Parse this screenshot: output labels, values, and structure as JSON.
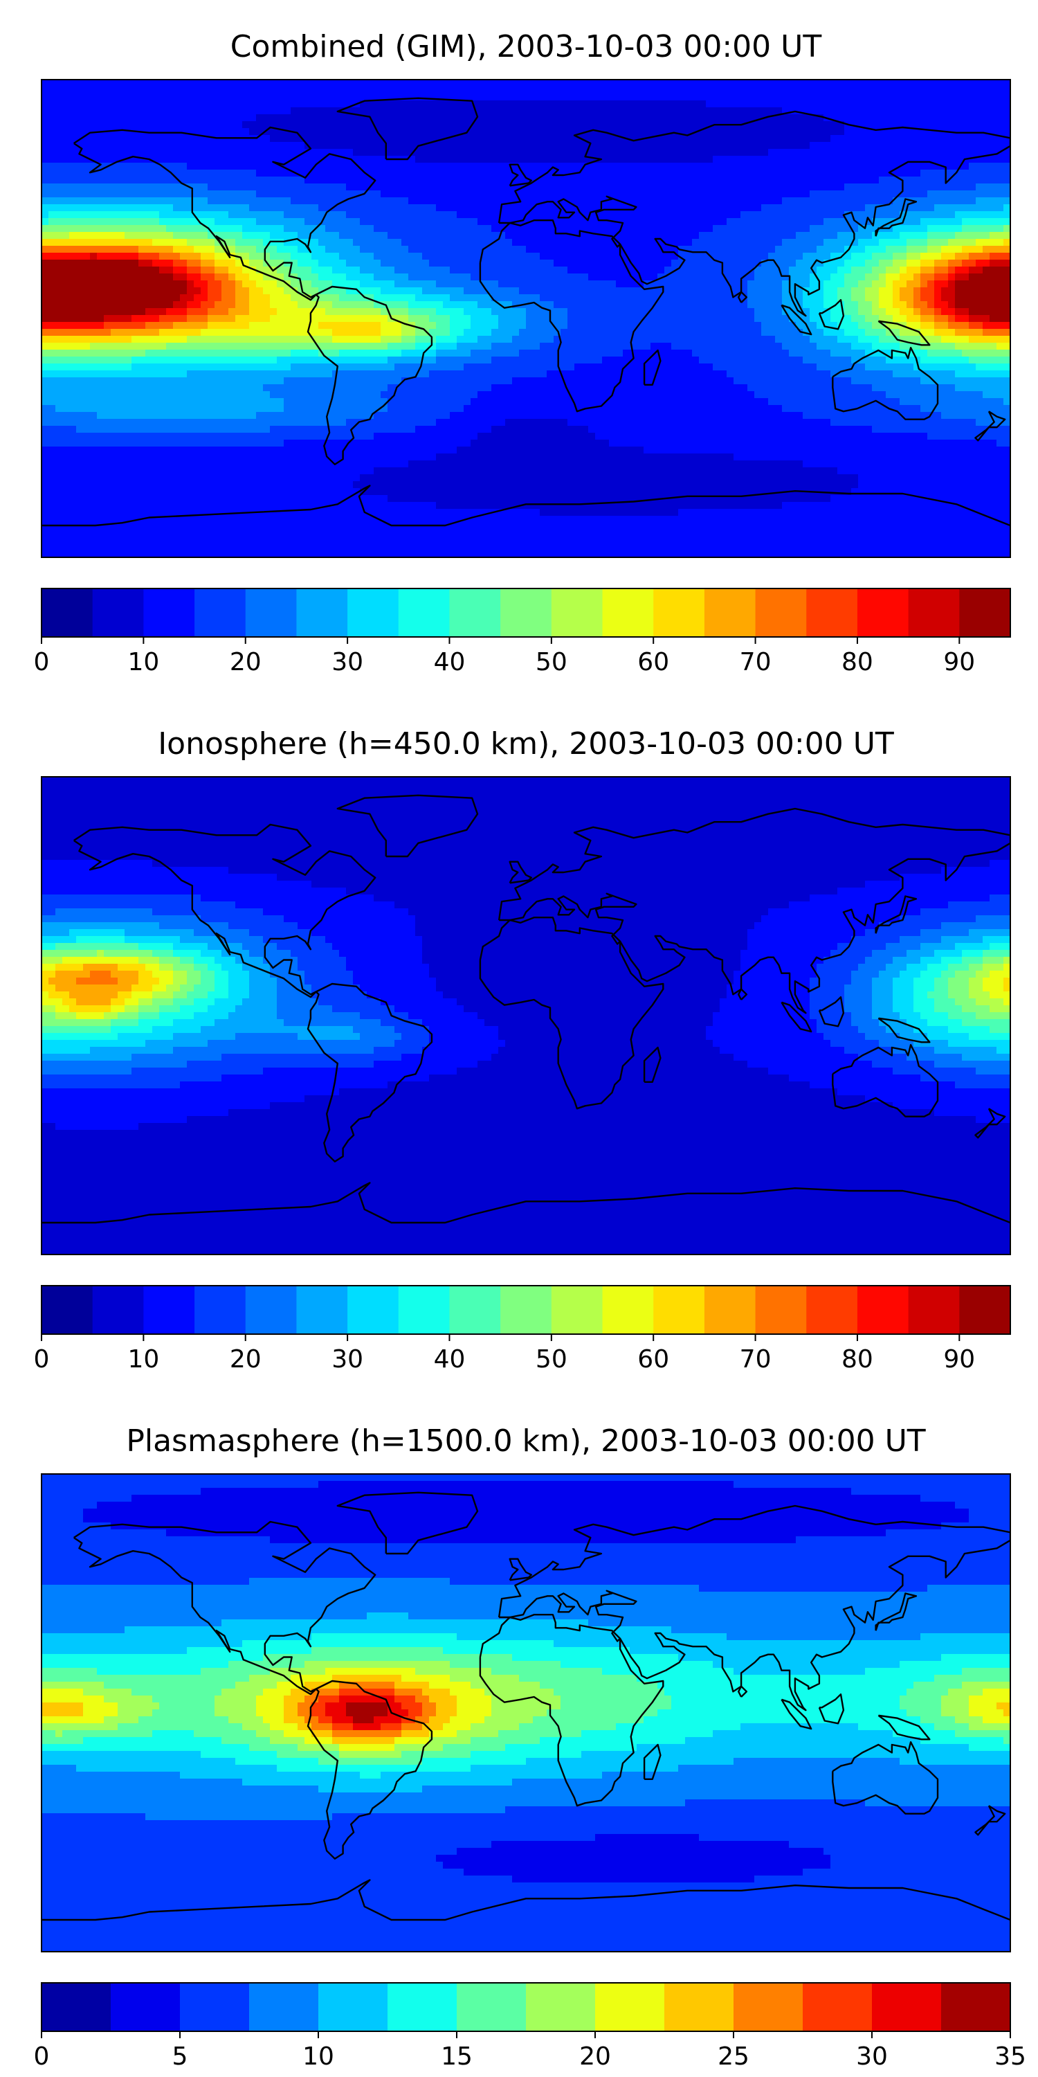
{
  "panels": [
    {
      "title": "Combined (GIM), 2003-10-03 00:00 UT",
      "colorbar": {
        "min": 0,
        "max": 95,
        "step": 5,
        "ticks": [
          "0",
          "10",
          "20",
          "30",
          "40",
          "50",
          "60",
          "70",
          "80",
          "90"
        ],
        "tick_values": [
          0,
          10,
          20,
          30,
          40,
          50,
          60,
          70,
          80,
          90
        ]
      },
      "blobs": [
        {
          "lon": -150,
          "lat": 12,
          "rlon": 80,
          "rlat": 30,
          "v": 38
        },
        {
          "lon": -150,
          "lat": 12,
          "rlon": 60,
          "rlat": 20,
          "v": 28
        },
        {
          "lon": -152,
          "lat": 12,
          "rlon": 40,
          "rlat": 13,
          "v": 18
        },
        {
          "lon": -160,
          "lat": 14,
          "rlon": 14,
          "rlat": 7,
          "v": 12
        },
        {
          "lon": -70,
          "lat": -5,
          "rlon": 55,
          "rlat": 14,
          "v": 18
        },
        {
          "lon": -58,
          "lat": -5,
          "rlon": 22,
          "rlat": 7,
          "v": 14
        },
        {
          "lon": -35,
          "lat": 0,
          "rlon": 50,
          "rlat": 12,
          "v": 12
        },
        {
          "lon": 160,
          "lat": 6,
          "rlon": 50,
          "rlat": 22,
          "v": 30
        },
        {
          "lon": 178,
          "lat": 8,
          "rlon": 22,
          "rlat": 12,
          "v": 12
        },
        {
          "lon": -120,
          "lat": -35,
          "rlon": 90,
          "rlat": 10,
          "v": 10
        },
        {
          "lon": 0,
          "lat": 70,
          "rlon": 200,
          "rlat": 20,
          "v": -6
        },
        {
          "lon": 30,
          "lat": -62,
          "rlon": 150,
          "rlat": 18,
          "v": -6
        },
        {
          "lon": 0,
          "lat": -40,
          "rlon": 30,
          "rlat": 12,
          "v": -5
        }
      ],
      "base": 14
    },
    {
      "title": "Ionosphere  (h=450.0 km), 2003-10-03 00:00 UT",
      "colorbar": {
        "min": 0,
        "max": 95,
        "step": 5,
        "ticks": [
          "0",
          "10",
          "20",
          "30",
          "40",
          "50",
          "60",
          "70",
          "80",
          "90"
        ],
        "tick_values": [
          0,
          10,
          20,
          30,
          40,
          50,
          60,
          70,
          80,
          90
        ]
      },
      "blobs": [
        {
          "lon": -150,
          "lat": 10,
          "rlon": 65,
          "rlat": 28,
          "v": 30
        },
        {
          "lon": -155,
          "lat": 15,
          "rlon": 35,
          "rlat": 10,
          "v": 25
        },
        {
          "lon": -160,
          "lat": 3,
          "rlon": 12,
          "rlat": 5,
          "v": 12
        },
        {
          "lon": -65,
          "lat": -8,
          "rlon": 30,
          "rlat": 10,
          "v": 12
        },
        {
          "lon": 165,
          "lat": 5,
          "rlon": 45,
          "rlat": 22,
          "v": 18
        },
        {
          "lon": 15,
          "lat": 20,
          "rlon": 50,
          "rlat": 20,
          "v": -4
        },
        {
          "lon": 0,
          "lat": 70,
          "rlon": 200,
          "rlat": 20,
          "v": -4
        },
        {
          "lon": 20,
          "lat": -50,
          "rlon": 150,
          "rlat": 22,
          "v": -4
        }
      ],
      "base": 10
    },
    {
      "title": "Plasmasphere (h=1500.0 km), 2003-10-03 00:00 UT",
      "colorbar": {
        "min": 0,
        "max": 35,
        "step": 2.5,
        "ticks": [
          "0",
          "5",
          "10",
          "15",
          "20",
          "25",
          "30",
          "35"
        ],
        "tick_values": [
          0,
          5,
          10,
          15,
          20,
          25,
          30,
          35
        ]
      },
      "blobs": [
        {
          "lon": -100,
          "lat": 5,
          "rlon": 150,
          "rlat": 28,
          "v": 7
        },
        {
          "lon": 20,
          "lat": 5,
          "rlon": 120,
          "rlat": 26,
          "v": 6
        },
        {
          "lon": -60,
          "lat": 0,
          "rlon": 45,
          "rlat": 20,
          "v": 8
        },
        {
          "lon": -60,
          "lat": 0,
          "rlon": 22,
          "rlat": 10,
          "v": 9
        },
        {
          "lon": -170,
          "lat": 0,
          "rlon": 30,
          "rlat": 10,
          "v": 6
        },
        {
          "lon": 175,
          "lat": 5,
          "rlon": 35,
          "rlat": 15,
          "v": 5
        },
        {
          "lon": 0,
          "lat": 75,
          "rlon": 200,
          "rlat": 15,
          "v": -4
        },
        {
          "lon": 40,
          "lat": -55,
          "rlon": 120,
          "rlat": 15,
          "v": -3
        }
      ],
      "base": 7
    }
  ],
  "colors": {
    "map_low": "#00007f",
    "map_high": "#7f0000",
    "coastline": "#000000"
  }
}
